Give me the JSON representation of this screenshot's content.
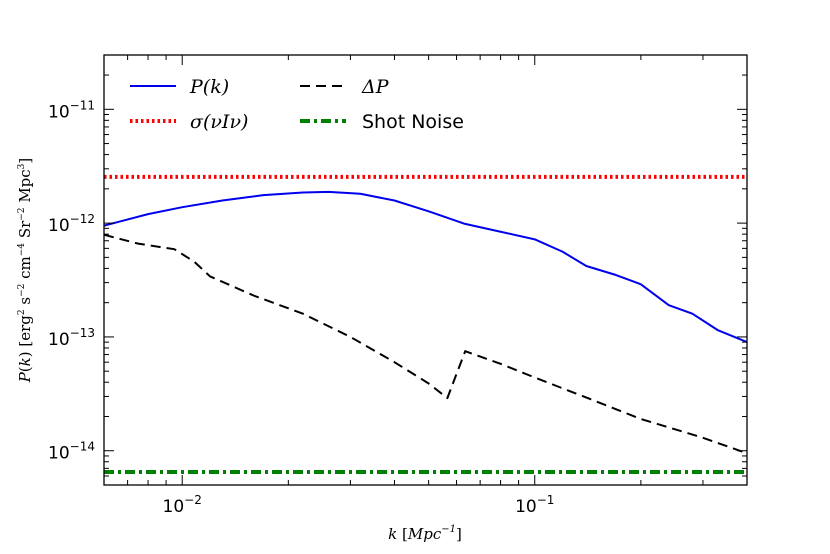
{
  "chart_data": {
    "type": "line",
    "xscale": "log",
    "yscale": "log",
    "xlim": [
      0.006,
      0.4
    ],
    "ylim": [
      5e-15,
      3e-11
    ],
    "xlabel": "k [Mpc⁻¹]",
    "ylabel": "P(k) [erg² s⁻² cm⁻⁴ Sr⁻² Mpc³]",
    "x_ticks": [
      {
        "value": 0.01,
        "base": "10",
        "exp": "-2"
      },
      {
        "value": 0.1,
        "base": "10",
        "exp": "-1"
      }
    ],
    "y_ticks": [
      {
        "value": 1e-14,
        "base": "10",
        "exp": "-14"
      },
      {
        "value": 1e-13,
        "base": "10",
        "exp": "-13"
      },
      {
        "value": 1e-12,
        "base": "10",
        "exp": "-12"
      },
      {
        "value": 1e-11,
        "base": "10",
        "exp": "-11"
      }
    ],
    "legend_position": "top-left",
    "series": [
      {
        "name": "P(k)",
        "color": "#0000ee",
        "style": "solid",
        "x": [
          0.006,
          0.008,
          0.01,
          0.013,
          0.017,
          0.022,
          0.026,
          0.032,
          0.04,
          0.05,
          0.063,
          0.08,
          0.1,
          0.12,
          0.14,
          0.17,
          0.2,
          0.24,
          0.28,
          0.33,
          0.4
        ],
        "y": [
          9.5e-13,
          1.2e-12,
          1.38e-12,
          1.58e-12,
          1.76e-12,
          1.86e-12,
          1.88e-12,
          1.81e-12,
          1.58e-12,
          1.27e-12,
          9.9e-13,
          8.4e-13,
          7.2e-13,
          5.6e-13,
          4.2e-13,
          3.5e-13,
          2.9e-13,
          1.9e-13,
          1.6e-13,
          1.15e-13,
          9e-14
        ]
      },
      {
        "name": "ΔP",
        "color": "#000000",
        "style": "dashed",
        "x": [
          0.006,
          0.0075,
          0.0095,
          0.0108,
          0.012,
          0.016,
          0.022,
          0.03,
          0.04,
          0.05,
          0.0565,
          0.0635,
          0.08,
          0.1,
          0.15,
          0.2,
          0.3,
          0.4
        ],
        "y": [
          7.9e-13,
          6.6e-13,
          5.9e-13,
          4.6e-13,
          3.4e-13,
          2.3e-13,
          1.6e-13,
          1e-13,
          6e-14,
          3.9e-14,
          2.9e-14,
          7.5e-14,
          5.8e-14,
          4.4e-14,
          2.7e-14,
          1.9e-14,
          1.3e-14,
          9.5e-15
        ]
      },
      {
        "name": "σ(νIν)",
        "color": "#ff0000",
        "style": "dotted",
        "x": [
          0.006,
          0.4
        ],
        "y": [
          2.55e-12,
          2.55e-12
        ]
      },
      {
        "name": "Shot Noise",
        "color": "#008000",
        "style": "dashdot",
        "x": [
          0.006,
          0.4
        ],
        "y": [
          6.5e-15,
          6.5e-15
        ]
      }
    ]
  },
  "legend": {
    "pk_label": "P(k)",
    "sigma_label": "σ(νIν)",
    "delta_label": "ΔP",
    "shot_label": "Shot Noise"
  }
}
